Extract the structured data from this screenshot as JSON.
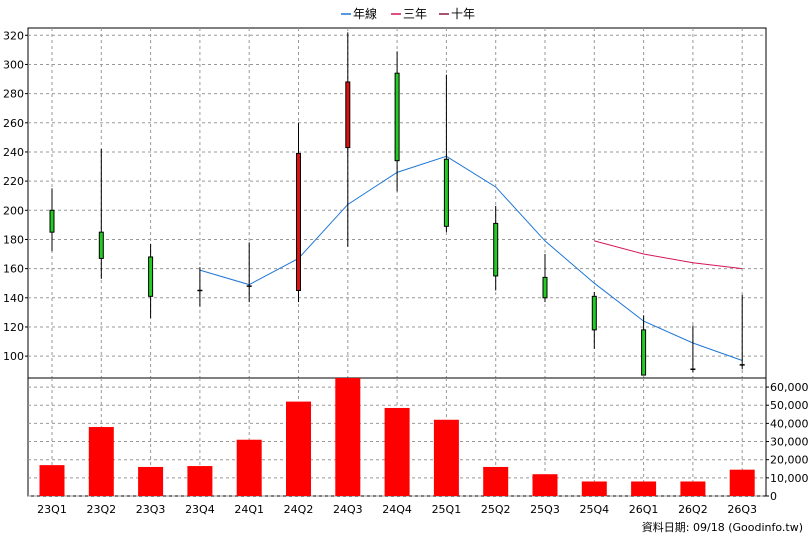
{
  "chart_data": {
    "type": "candlestick+bar",
    "legend": [
      {
        "name": "年線",
        "color": "#1f77d4"
      },
      {
        "name": "三年",
        "color": "#d4145a"
      },
      {
        "name": "十年",
        "color": "#8b1a3a"
      }
    ],
    "categories": [
      "23Q1",
      "23Q2",
      "23Q3",
      "23Q4",
      "24Q1",
      "24Q2",
      "24Q3",
      "24Q4",
      "25Q1",
      "25Q2",
      "25Q3",
      "25Q4",
      "26Q1",
      "26Q2",
      "26Q3"
    ],
    "price_axis": {
      "ylim": [
        85,
        325
      ],
      "ticks": [
        100,
        120,
        140,
        160,
        180,
        200,
        220,
        240,
        260,
        280,
        300,
        320
      ]
    },
    "volume_axis": {
      "ylim": [
        0,
        65000
      ],
      "ticks": [
        0,
        10000,
        20000,
        30000,
        40000,
        50000,
        60000
      ],
      "tick_labels": [
        "0",
        "10,000",
        "20,000",
        "30,000",
        "40,000",
        "50,000",
        "60,000"
      ]
    },
    "candles": [
      {
        "open": 185,
        "close": 200,
        "high": 215,
        "low": 172,
        "color": "green"
      },
      {
        "open": 167,
        "close": 185,
        "high": 242,
        "low": 153,
        "color": "green"
      },
      {
        "open": 141,
        "close": 168,
        "high": 177,
        "low": 126,
        "color": "green"
      },
      {
        "open": 145,
        "close": 145,
        "high": 161,
        "low": 134,
        "color": "green"
      },
      {
        "open": 148,
        "close": 148,
        "high": 178,
        "low": 137,
        "color": "green"
      },
      {
        "open": 239,
        "close": 145,
        "high": 260,
        "low": 137,
        "color": "red"
      },
      {
        "open": 288,
        "close": 243,
        "high": 322,
        "low": 175,
        "color": "red"
      },
      {
        "open": 234,
        "close": 294,
        "high": 309,
        "low": 213,
        "color": "green"
      },
      {
        "open": 189,
        "close": 235,
        "high": 293,
        "low": 185,
        "color": "green"
      },
      {
        "open": 155,
        "close": 191,
        "high": 203,
        "low": 145,
        "color": "green"
      },
      {
        "open": 140,
        "close": 154,
        "high": 170,
        "low": 137,
        "color": "green"
      },
      {
        "open": 118,
        "close": 141,
        "high": 144,
        "low": 105,
        "color": "green"
      },
      {
        "open": 87,
        "close": 118,
        "high": 128,
        "low": 87,
        "color": "green"
      },
      {
        "open": 91,
        "close": 91,
        "high": 121,
        "low": 89,
        "color": "green"
      },
      {
        "open": 93,
        "close": 94,
        "high": 142,
        "low": 91,
        "color": "green"
      }
    ],
    "annual_line": {
      "name": "年線",
      "values": [
        null,
        null,
        null,
        159,
        149,
        167,
        204,
        226,
        237,
        216,
        179,
        150,
        124,
        109,
        97
      ]
    },
    "three_year_line": {
      "name": "三年",
      "values": [
        null,
        null,
        null,
        null,
        null,
        null,
        null,
        null,
        null,
        null,
        null,
        179,
        170,
        164,
        160
      ]
    },
    "volume": [
      17000,
      38000,
      16000,
      16500,
      31000,
      52000,
      65000,
      48500,
      42000,
      16000,
      12000,
      8000,
      8000,
      8000,
      14500
    ],
    "colors": {
      "green": "#22cc22",
      "red": "#dd1111",
      "volume": "#ff0000",
      "grid": "#999999",
      "wick": "#000000"
    }
  },
  "footer": {
    "text": "資料日期: 09/18  (Goodinfo.tw)"
  }
}
